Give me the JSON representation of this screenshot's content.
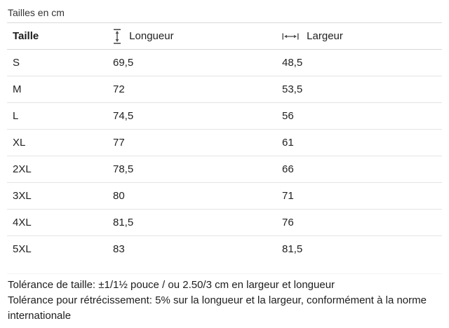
{
  "title": "Tailles en cm",
  "table": {
    "columns": [
      {
        "key": "taille",
        "label": "Taille",
        "icon": null
      },
      {
        "key": "longueur",
        "label": "Longueur",
        "icon": "length-arrow-icon"
      },
      {
        "key": "largeur",
        "label": "Largeur",
        "icon": "width-arrow-icon"
      }
    ],
    "rows": [
      {
        "taille": "S",
        "longueur": "69,5",
        "largeur": "48,5"
      },
      {
        "taille": "M",
        "longueur": "72",
        "largeur": "53,5"
      },
      {
        "taille": "L",
        "longueur": "74,5",
        "largeur": "56"
      },
      {
        "taille": "XL",
        "longueur": "77",
        "largeur": "61"
      },
      {
        "taille": "2XL",
        "longueur": "78,5",
        "largeur": "66"
      },
      {
        "taille": "3XL",
        "longueur": "80",
        "largeur": "71"
      },
      {
        "taille": "4XL",
        "longueur": "81,5",
        "largeur": "76"
      },
      {
        "taille": "5XL",
        "longueur": "83",
        "largeur": "81,5"
      }
    ]
  },
  "footnotes": [
    "Tolérance de taille: ±1/1½ pouce / ou 2.50/3 cm en largeur et longueur",
    "Tolérance pour rétrécissement: 5% sur la longueur et la largeur, conformément à la norme internationale"
  ],
  "colors": {
    "text": "#212121",
    "icon": "#4d4d4d",
    "border_strong": "#d9d9d9",
    "border_row": "#e4e4e4",
    "border_bottom_faint": "#f4f4f4",
    "background": "#ffffff"
  }
}
